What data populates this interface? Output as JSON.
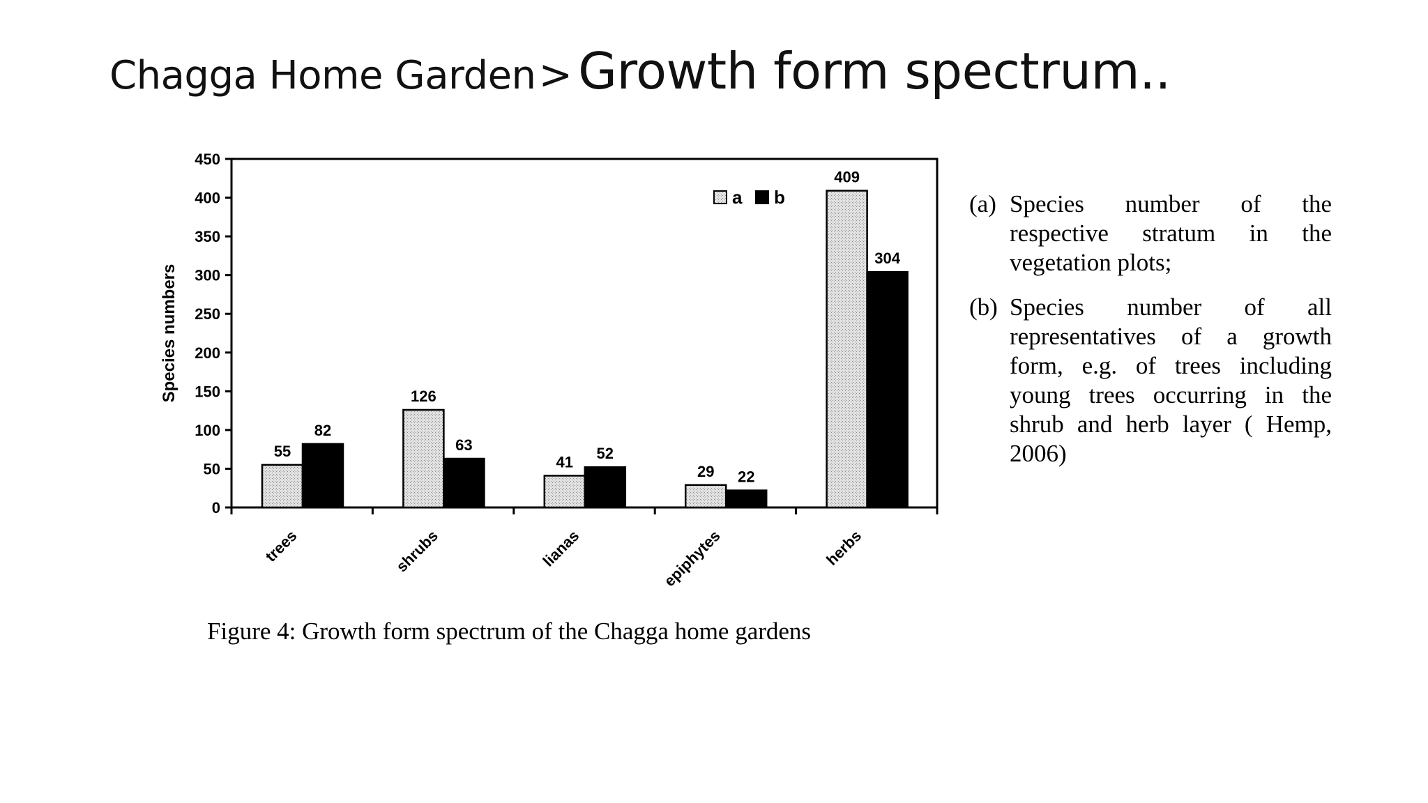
{
  "slide": {
    "title_main": "Chagga Home Garden",
    "title_separator": ">",
    "title_sub": "Growth form spectrum.."
  },
  "chart_data": {
    "type": "bar",
    "categories": [
      "trees",
      "shrubs",
      "lianas",
      "epiphytes",
      "herbs"
    ],
    "series": [
      {
        "name": "a",
        "values": [
          55,
          126,
          41,
          29,
          409
        ],
        "fill": "stippled-light-gray"
      },
      {
        "name": "b",
        "values": [
          82,
          63,
          52,
          22,
          304
        ],
        "fill": "#000000"
      }
    ],
    "ylabel": "Species numbers",
    "xlabel": "",
    "ylim": [
      0,
      450
    ],
    "yticks": [
      0,
      50,
      100,
      150,
      200,
      250,
      300,
      350,
      400,
      450
    ],
    "grid": false,
    "legend_position": "top-right",
    "data_labels": true
  },
  "notes": [
    {
      "key": "(a)",
      "text": "Species number of the respective stratum in the vegetation plots;"
    },
    {
      "key": "(b)",
      "text": "Species number of all representatives of a growth form, e.g. of trees including young trees occurring in the shrub and herb layer ( Hemp, 2006)"
    }
  ],
  "caption": "Figure 4: Growth form spectrum of the Chagga home gardens"
}
